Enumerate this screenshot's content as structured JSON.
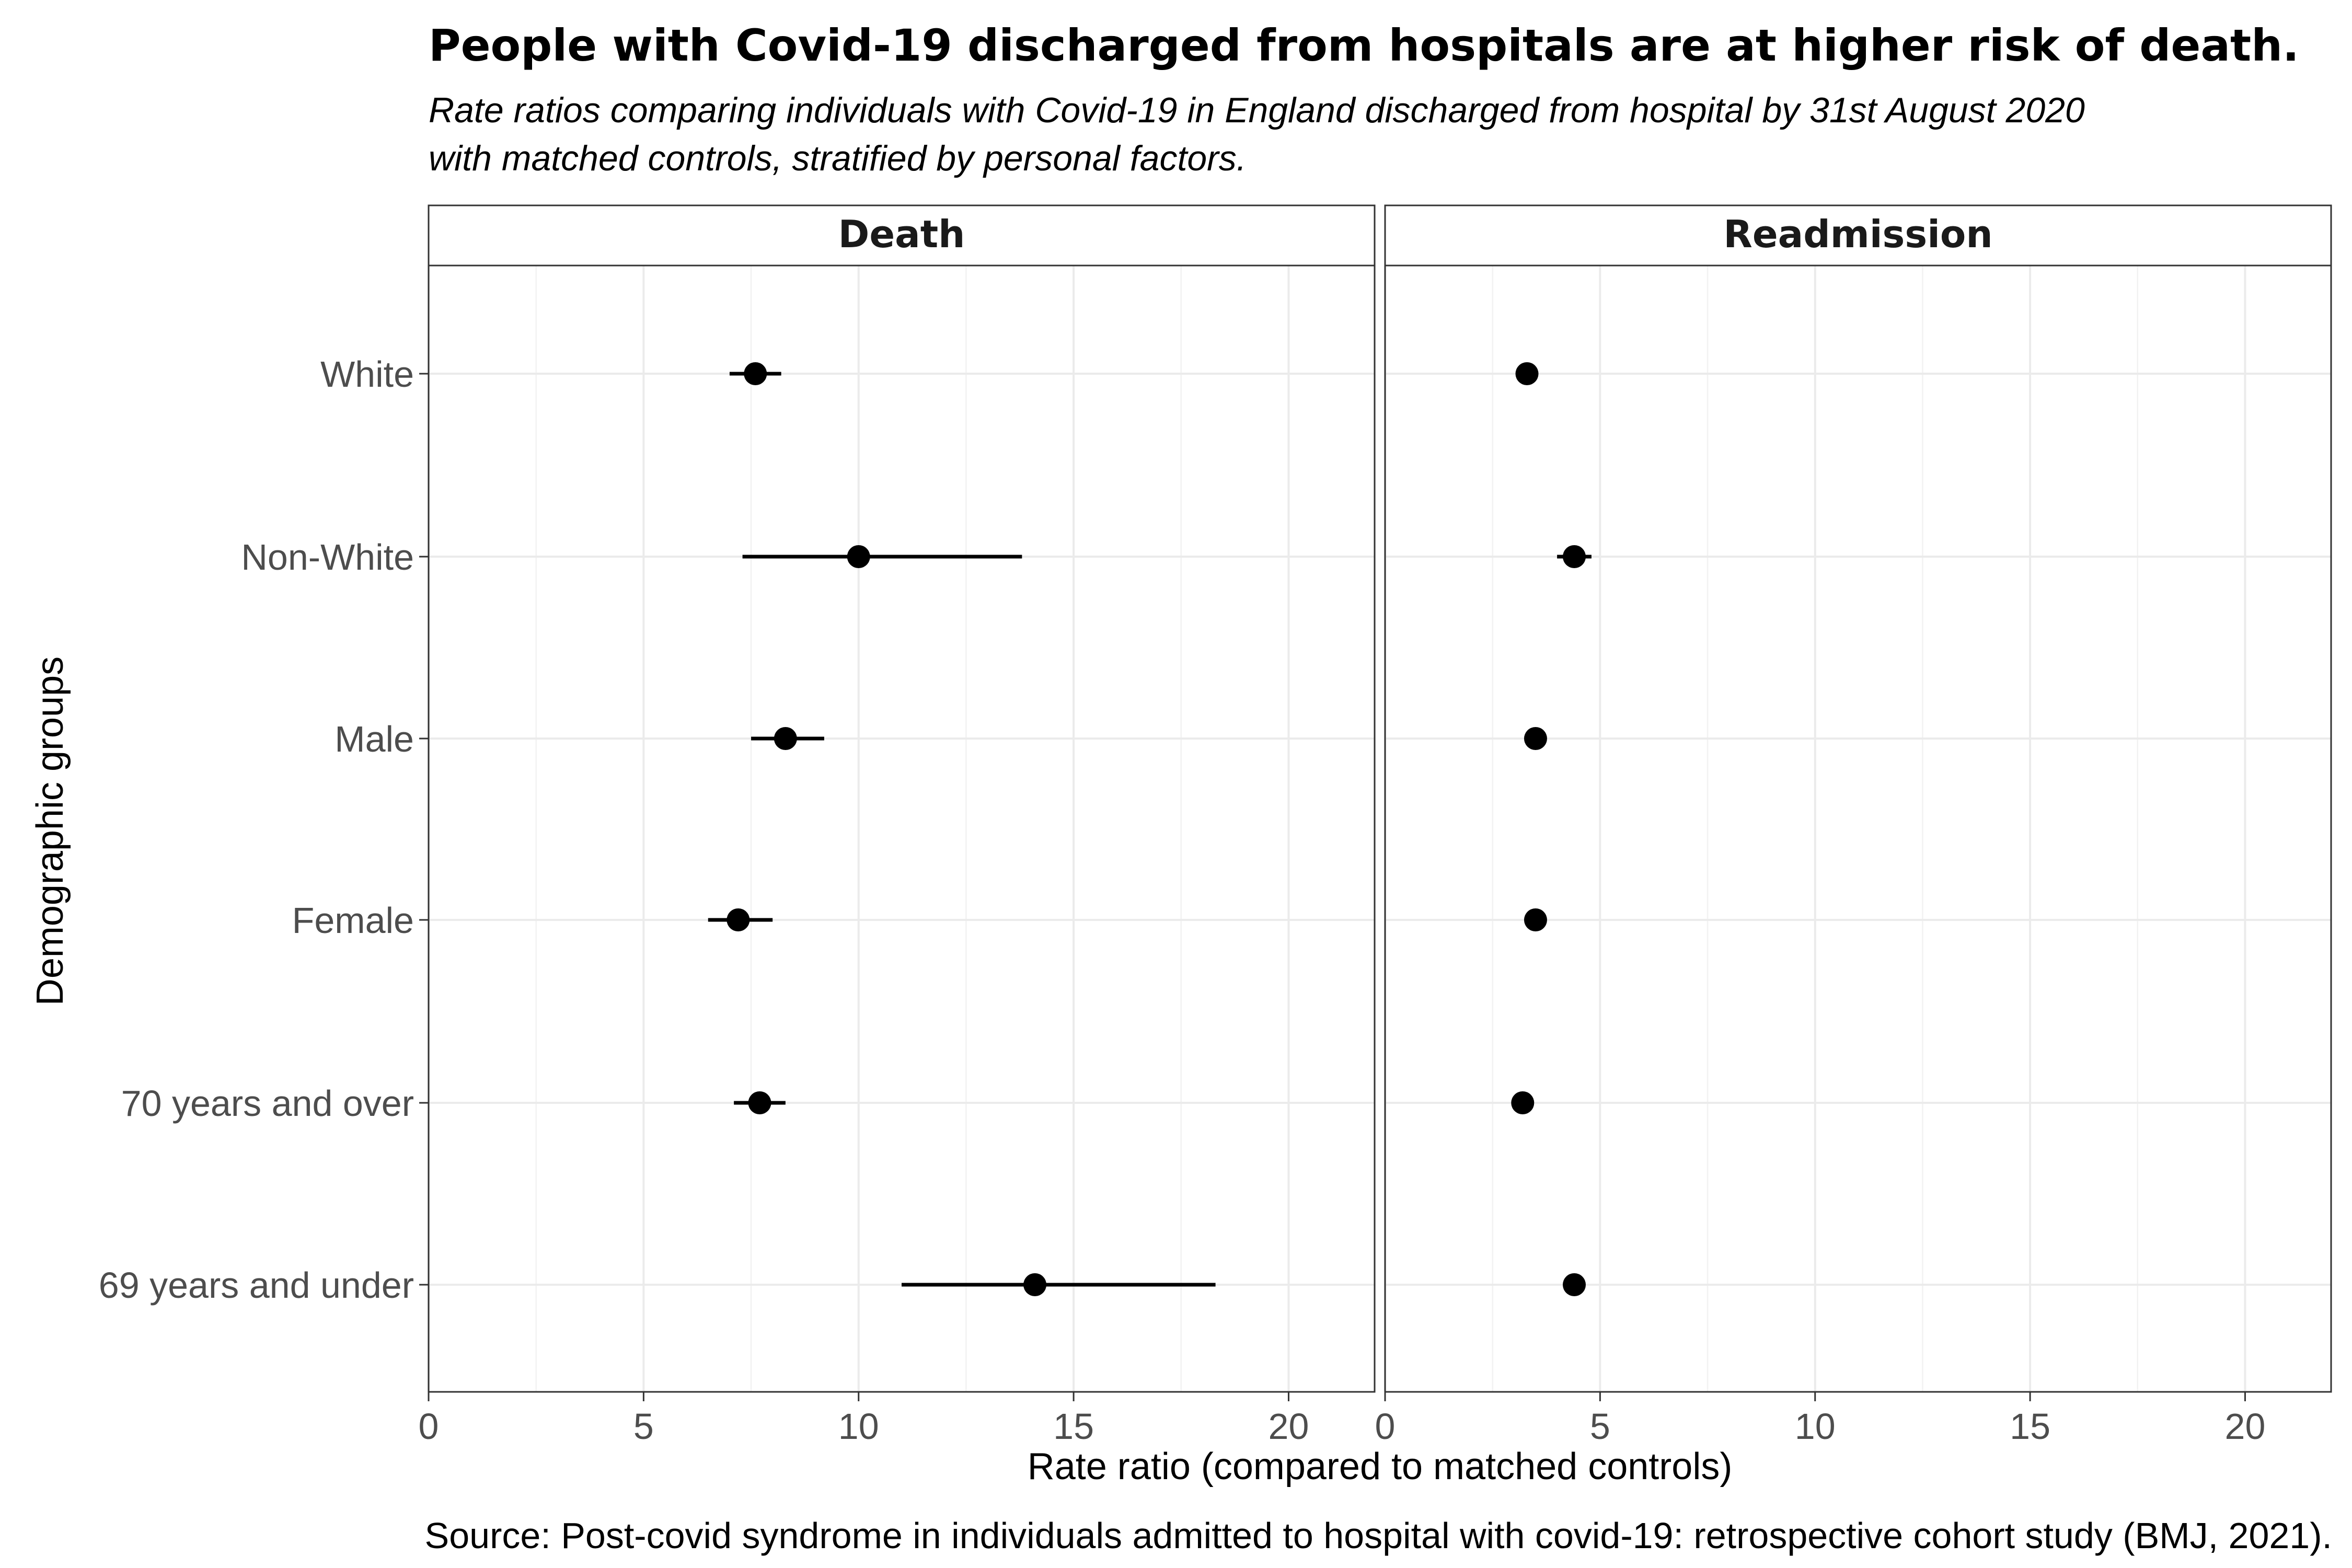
{
  "chart_data": {
    "type": "scatter",
    "subtype": "forest-plot-faceted",
    "title": "People with Covid-19 discharged from hospitals are at higher risk of death.",
    "subtitle": "Rate ratios comparing individuals with Covid-19 in England discharged from hospital by 31st August 2020 with matched controls, stratified by personal factors.",
    "caption": "Source: Post-covid syndrome in individuals admitted to hospital with covid-19: retrospective cohort study (BMJ, 2021).",
    "xlabel": "Rate ratio (compared to matched controls)",
    "ylabel": "Demographic groups",
    "xlim": [
      0,
      22
    ],
    "xticks": [
      0,
      5,
      10,
      15,
      20
    ],
    "grid": true,
    "categories": [
      "White",
      "Non-White",
      "Male",
      "Female",
      "70 years and over",
      "69 years and under"
    ],
    "facets": [
      {
        "name": "Death",
        "points": [
          {
            "group": "White",
            "estimate": 7.6,
            "lower": 7.0,
            "upper": 8.2
          },
          {
            "group": "Non-White",
            "estimate": 10.0,
            "lower": 7.3,
            "upper": 13.8
          },
          {
            "group": "Male",
            "estimate": 8.3,
            "lower": 7.5,
            "upper": 9.2
          },
          {
            "group": "Female",
            "estimate": 7.2,
            "lower": 6.5,
            "upper": 8.0
          },
          {
            "group": "70 years and over",
            "estimate": 7.7,
            "lower": 7.1,
            "upper": 8.3
          },
          {
            "group": "69 years and under",
            "estimate": 14.1,
            "lower": 11.0,
            "upper": 18.3
          }
        ]
      },
      {
        "name": "Readmission",
        "points": [
          {
            "group": "White",
            "estimate": 3.3,
            "lower": 3.2,
            "upper": 3.4
          },
          {
            "group": "Non-White",
            "estimate": 4.4,
            "lower": 4.0,
            "upper": 4.8
          },
          {
            "group": "Male",
            "estimate": 3.5,
            "lower": 3.4,
            "upper": 3.6
          },
          {
            "group": "Female",
            "estimate": 3.5,
            "lower": 3.4,
            "upper": 3.6
          },
          {
            "group": "70 years and over",
            "estimate": 3.2,
            "lower": 3.1,
            "upper": 3.3
          },
          {
            "group": "69 years and under",
            "estimate": 4.4,
            "lower": 4.3,
            "upper": 4.5
          }
        ]
      }
    ]
  }
}
